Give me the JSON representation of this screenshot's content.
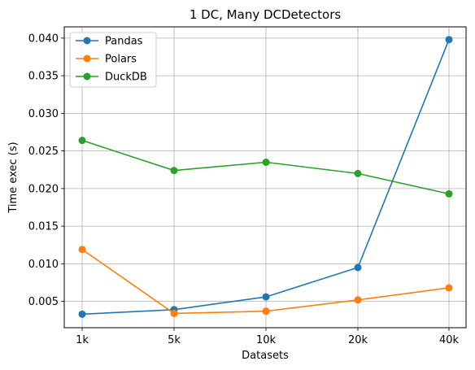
{
  "chart_data": {
    "type": "line",
    "title": "1 DC, Many DCDetectors",
    "xlabel": "Datasets",
    "ylabel": "Time exec (s)",
    "categories": [
      "1k",
      "5k",
      "10k",
      "20k",
      "40k"
    ],
    "ylim": [
      0.0015,
      0.0415
    ],
    "yticks": [
      "0.005",
      "0.010",
      "0.015",
      "0.020",
      "0.025",
      "0.030",
      "0.035",
      "0.040"
    ],
    "ytick_values": [
      0.005,
      0.01,
      0.015,
      0.02,
      0.025,
      0.03,
      0.035,
      0.04
    ],
    "grid": true,
    "legend_position": "upper-left",
    "series": [
      {
        "name": "Pandas",
        "color": "#1f77b4",
        "values": [
          0.0033,
          0.0039,
          0.0056,
          0.0095,
          0.0398
        ]
      },
      {
        "name": "Polars",
        "color": "#ff7f0e",
        "values": [
          0.0119,
          0.0034,
          0.0037,
          0.0052,
          0.0068
        ]
      },
      {
        "name": "DuckDB",
        "color": "#2ca02c",
        "values": [
          0.0264,
          0.0224,
          0.0235,
          0.022,
          0.0193
        ]
      }
    ]
  }
}
